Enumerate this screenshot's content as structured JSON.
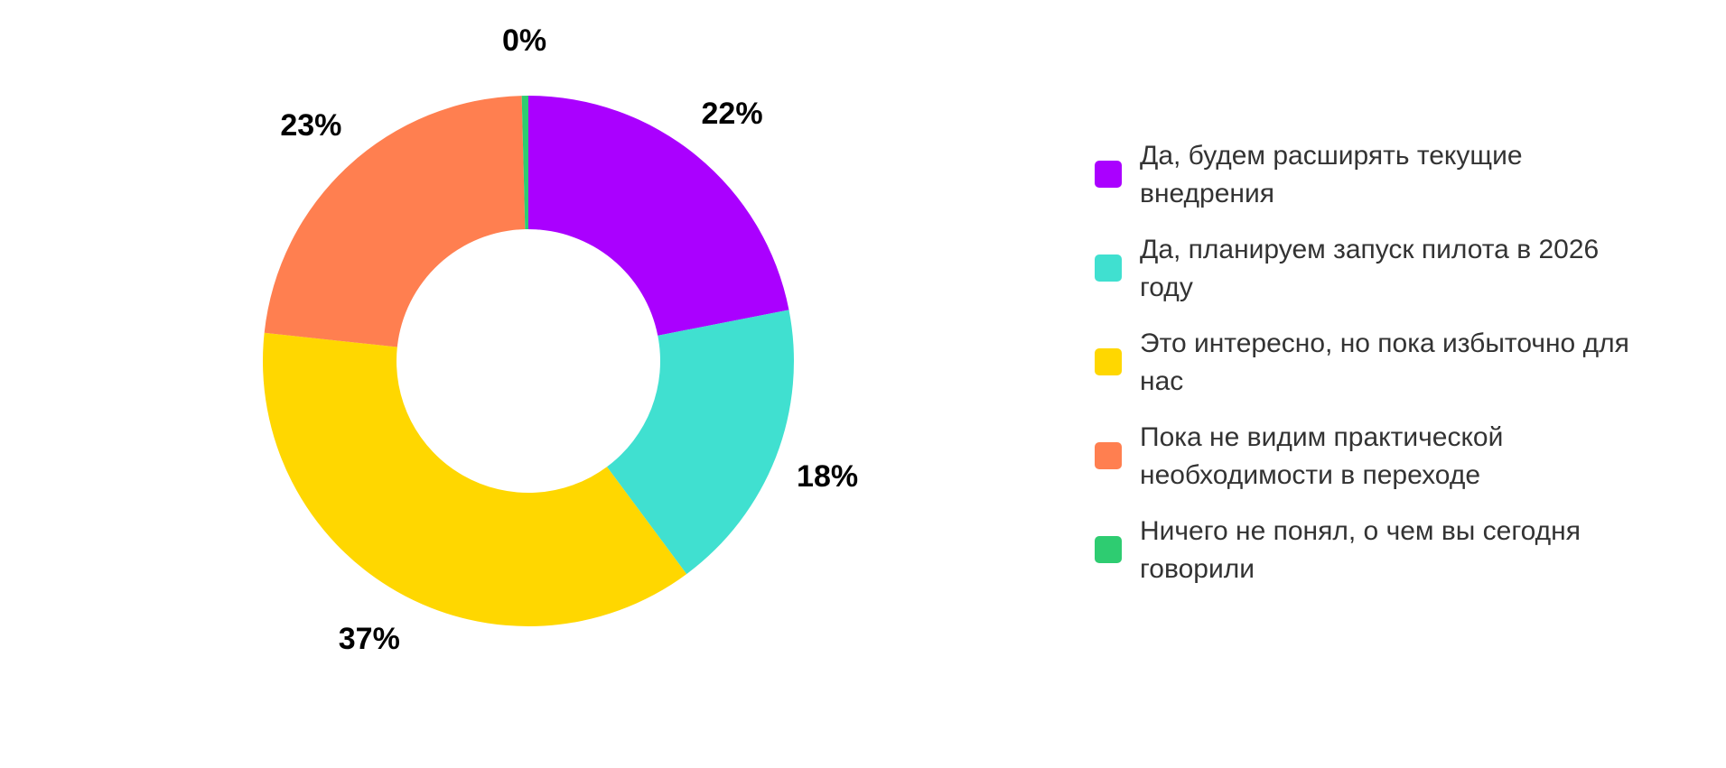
{
  "chart_data": {
    "type": "pie",
    "variant": "donut",
    "title": "",
    "categories": [
      "Да, будем расширять текущие внедрения",
      "Да, планируем запуск пилота в 2026 году",
      "Это интересно, но пока избыточно для нас",
      "Пока не видим практической необходимости в переходе",
      "Ничего не понял, о чем вы сегодня говорили"
    ],
    "values": [
      22,
      18,
      37,
      23,
      0.4
    ],
    "labels": [
      "22%",
      "18%",
      "37%",
      "23%",
      "0%"
    ],
    "colors": [
      "#AA00FF",
      "#40E0D0",
      "#FFD700",
      "#FF7F50",
      "#2ECC71"
    ],
    "legend_position": "right"
  }
}
